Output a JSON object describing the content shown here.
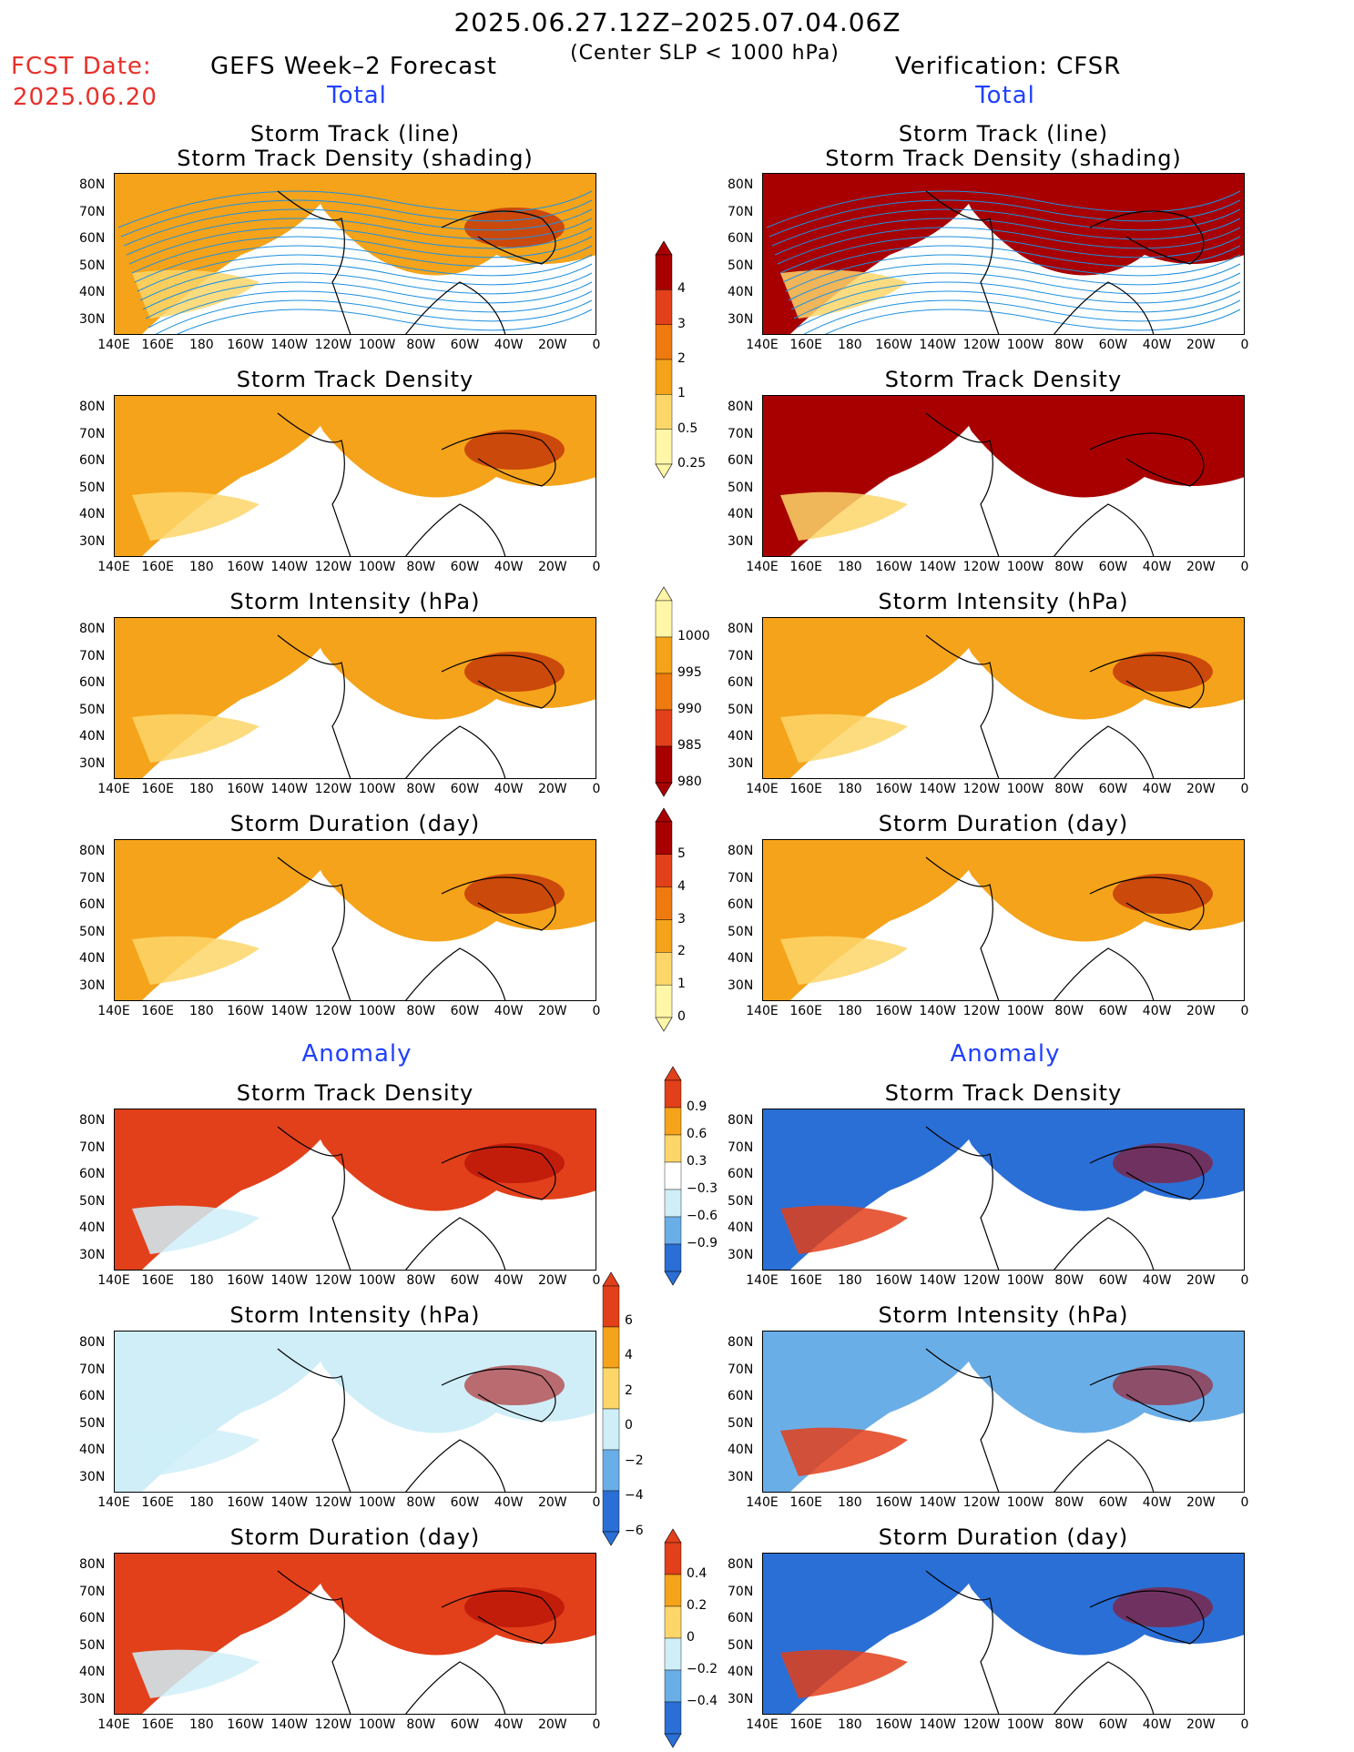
{
  "header": {
    "period": "2025.06.27.12Z–2025.07.04.06Z",
    "criterion": "(Center SLP < 1000 hPa)",
    "fcst_label": "FCST Date:",
    "fcst_date": "2025.06.20",
    "left_title": "GEFS Week–2 Forecast",
    "right_title": "Verification: CFSR",
    "section_total": "Total",
    "section_anomaly": "Anomaly"
  },
  "axes": {
    "lon_ticks": [
      "140E",
      "160E",
      "180",
      "160W",
      "140W",
      "120W",
      "100W",
      "80W",
      "60W",
      "40W",
      "20W",
      "0"
    ],
    "lat_ticks": [
      "80N",
      "70N",
      "60N",
      "50N",
      "40N",
      "30N"
    ]
  },
  "colors": {
    "orange": "#f5a31a",
    "dark_orange": "#ef7a0f",
    "red": "#e2401a",
    "dark_red": "#a80000",
    "light_yellow": "#fff6a8",
    "tan": "#fdd66a",
    "light_blue": "#cfeef8",
    "mid_blue": "#6aaee8",
    "blue": "#2a6fd6",
    "track_line": "#1e90e0"
  },
  "panels": [
    {
      "row": 0,
      "col": "left",
      "title_line1": "Storm Track (line)",
      "title_line2": "Storm Track Density (shading)",
      "fill": "orange"
    },
    {
      "row": 0,
      "col": "right",
      "title_line1": "Storm Track (line)",
      "title_line2": "Storm Track Density (shading)",
      "fill": "dark_red"
    },
    {
      "row": 1,
      "col": "left",
      "title_line1": "Storm Track Density",
      "title_line2": "",
      "fill": "orange"
    },
    {
      "row": 1,
      "col": "right",
      "title_line1": "Storm Track Density",
      "title_line2": "",
      "fill": "dark_red"
    },
    {
      "row": 2,
      "col": "left",
      "title_line1": "Storm Intensity (hPa)",
      "title_line2": "",
      "fill": "orange"
    },
    {
      "row": 2,
      "col": "right",
      "title_line1": "Storm Intensity (hPa)",
      "title_line2": "",
      "fill": "orange"
    },
    {
      "row": 3,
      "col": "left",
      "title_line1": "Storm Duration (day)",
      "title_line2": "",
      "fill": "orange"
    },
    {
      "row": 3,
      "col": "right",
      "title_line1": "Storm Duration (day)",
      "title_line2": "",
      "fill": "orange"
    },
    {
      "row": 4,
      "col": "left",
      "title_line1": "Storm Track Density",
      "title_line2": "",
      "fill": "red"
    },
    {
      "row": 4,
      "col": "right",
      "title_line1": "Storm Track Density",
      "title_line2": "",
      "fill": "blue"
    },
    {
      "row": 5,
      "col": "left",
      "title_line1": "Storm Intensity (hPa)",
      "title_line2": "",
      "fill": "light_blue"
    },
    {
      "row": 5,
      "col": "right",
      "title_line1": "Storm Intensity (hPa)",
      "title_line2": "",
      "fill": "mid_blue"
    },
    {
      "row": 6,
      "col": "left",
      "title_line1": "Storm Duration (day)",
      "title_line2": "",
      "fill": "red"
    },
    {
      "row": 6,
      "col": "right",
      "title_line1": "Storm Duration (day)",
      "title_line2": "",
      "fill": "blue"
    }
  ],
  "colorbars": [
    {
      "name": "density-total",
      "labels": [
        "4",
        "3",
        "2",
        "1",
        "0.5",
        "0.25"
      ],
      "colors": [
        "#a80000",
        "#e2401a",
        "#ef7a0f",
        "#f5a31a",
        "#fdd66a",
        "#fff6a8"
      ]
    },
    {
      "name": "intensity-total",
      "labels": [
        "1000",
        "995",
        "990",
        "985",
        "980"
      ],
      "colors": [
        "#fff6a8",
        "#f5a31a",
        "#ef7a0f",
        "#e2401a",
        "#a80000"
      ]
    },
    {
      "name": "duration-total",
      "labels": [
        "5",
        "4",
        "3",
        "2",
        "1",
        "0"
      ],
      "colors": [
        "#a80000",
        "#e2401a",
        "#ef7a0f",
        "#f5a31a",
        "#fdd66a",
        "#fff6a8"
      ]
    },
    {
      "name": "density-anomaly",
      "labels": [
        "0.9",
        "0.6",
        "0.3",
        "−0.3",
        "−0.6",
        "−0.9"
      ],
      "colors": [
        "#e2401a",
        "#f5a31a",
        "#fdd66a",
        "#ffffff",
        "#cfeef8",
        "#6aaee8",
        "#2a6fd6"
      ]
    },
    {
      "name": "intensity-anomaly",
      "labels": [
        "6",
        "4",
        "2",
        "0",
        "−2",
        "−4",
        "−6"
      ],
      "colors": [
        "#e2401a",
        "#f5a31a",
        "#fdd66a",
        "#cfeef8",
        "#6aaee8",
        "#2a6fd6"
      ]
    },
    {
      "name": "duration-anomaly",
      "labels": [
        "0.4",
        "0.2",
        "0",
        "−0.2",
        "−0.4"
      ],
      "colors": [
        "#e2401a",
        "#f5a31a",
        "#fdd66a",
        "#cfeef8",
        "#6aaee8",
        "#2a6fd6"
      ]
    }
  ]
}
